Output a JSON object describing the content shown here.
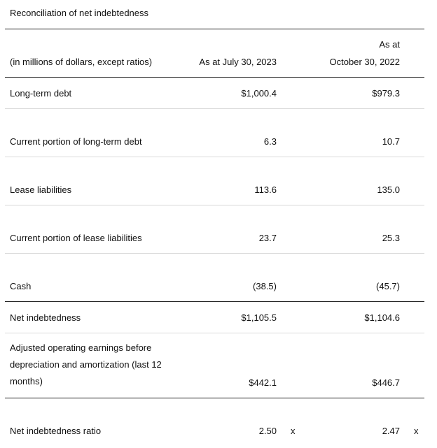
{
  "title": "Reconciliation of net indebtedness",
  "header": {
    "units": "(in millions of dollars, except ratios)",
    "col1": "As at July 30, 2023",
    "col2_line1": "As at",
    "col2_line2": "October 30, 2022"
  },
  "rows": [
    {
      "label": "Long-term debt",
      "v1": "$1,000.4",
      "v2": "$979.3"
    },
    {
      "label": "Current portion of long-term debt",
      "v1": "6.3",
      "v2": "10.7"
    },
    {
      "label": "Lease liabilities",
      "v1": "113.6",
      "v2": "135.0"
    },
    {
      "label": "Current portion of lease liabilities",
      "v1": "23.7",
      "v2": "25.3"
    },
    {
      "label": "Cash",
      "v1": "(38.5)",
      "v2": "(45.7)"
    },
    {
      "label": "Net indebtedness",
      "v1": "$1,105.5",
      "v2": "$1,104.6"
    },
    {
      "label": "Adjusted operating earnings before depreciation and amortization (last 12 months)",
      "v1": "$442.1",
      "v2": "$446.7"
    },
    {
      "label": "Net indebtedness ratio",
      "v1": "2.50",
      "v2": "2.47",
      "suffix": "x"
    }
  ]
}
